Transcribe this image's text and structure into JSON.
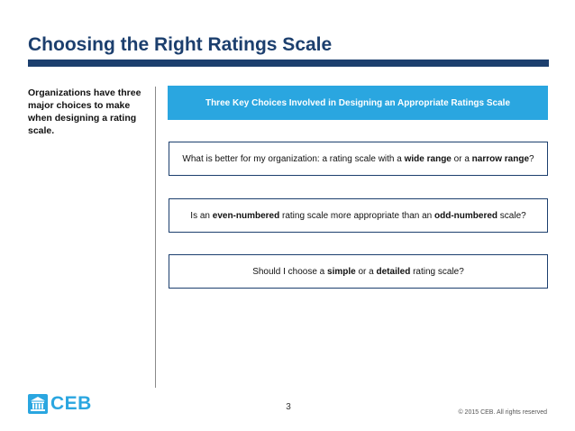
{
  "slide": {
    "title": "Choosing the Right Ratings Scale",
    "intro": "Organizations have three major choices to make when designing a rating scale.",
    "header": "Three Key Choices Involved in Designing an Appropriate Ratings Scale",
    "questions": [
      {
        "parts": [
          "What is better for my organization: a rating scale with a ",
          "wide range",
          " or a ",
          "narrow range",
          "?"
        ]
      },
      {
        "parts": [
          "Is an ",
          "even-numbered",
          " rating scale more appropriate than an ",
          "odd-numbered",
          " scale?"
        ]
      },
      {
        "parts": [
          "Should I choose a ",
          "simple",
          " or a ",
          "detailed",
          " rating scale?"
        ]
      }
    ]
  },
  "footer": {
    "logo_text": "CEB",
    "page_number": "3",
    "copyright": "© 2015 CEB. All rights reserved"
  },
  "colors": {
    "title": "#1c3f6e",
    "accent_blue": "#2aa6e0",
    "box_border": "#1c3f6e"
  },
  "icons": {
    "logo": "ceb-building-icon"
  }
}
